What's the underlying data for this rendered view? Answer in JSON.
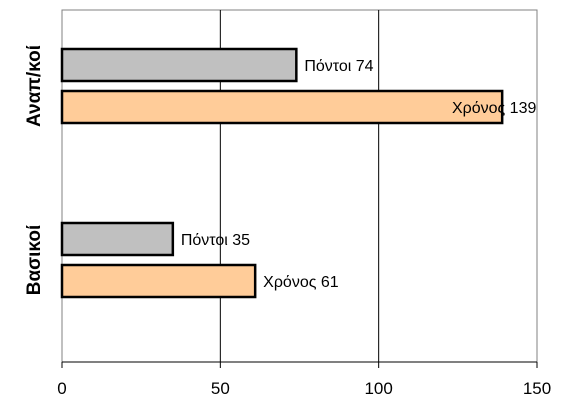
{
  "chart_data": {
    "type": "bar",
    "orientation": "horizontal",
    "categories": [
      "Αναπ/κοί",
      "Βασικοί"
    ],
    "series": [
      {
        "values": [
          74,
          35
        ],
        "labels": [
          "Πόντοι 74",
          "Πόντοι 35"
        ],
        "color": "#c0c0c0"
      },
      {
        "values": [
          139,
          61
        ],
        "labels": [
          "Χρόνος 139",
          "Χρόνος 61"
        ],
        "color": "#ffcc99"
      }
    ],
    "xlim": [
      0,
      150
    ],
    "xticks": [
      0,
      50,
      100,
      150
    ],
    "tick_labels": [
      "0",
      "50",
      "100",
      "150"
    ],
    "grid": "vertical",
    "title": "",
    "xlabel": "",
    "ylabel": ""
  }
}
